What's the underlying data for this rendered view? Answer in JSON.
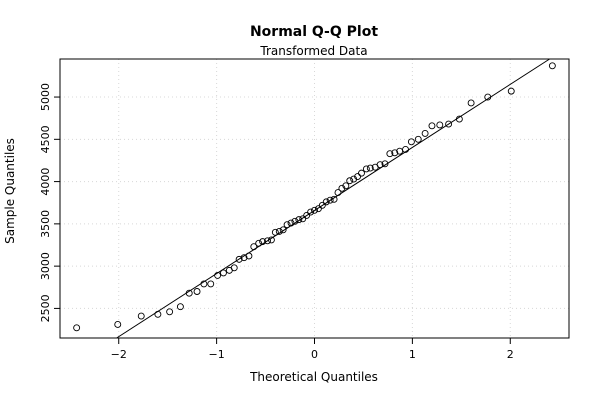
{
  "chart_data": {
    "type": "scatter",
    "title": "Normal Q-Q Plot",
    "subtitle": "Transformed Data",
    "xlabel": "Theoretical Quantiles",
    "ylabel": "Sample Quantiles",
    "xlim": [
      -2.6,
      2.6
    ],
    "ylim": [
      2150,
      5450
    ],
    "xticks": [
      -2,
      -1,
      0,
      1,
      2
    ],
    "xtick_labels": [
      "−2",
      "−1",
      "0",
      "1",
      "2"
    ],
    "yticks": [
      2500,
      3000,
      3500,
      4000,
      4500,
      5000
    ],
    "ytick_labels": [
      "2500",
      "3000",
      "3500",
      "4000",
      "4500",
      "5000"
    ],
    "grid": true,
    "reference_line": {
      "intercept": 3658,
      "slope": 746
    },
    "points": {
      "x": [
        -2.43,
        -2.01,
        -1.77,
        -1.6,
        -1.48,
        -1.37,
        -1.28,
        -1.2,
        -1.13,
        -1.06,
        -0.99,
        -0.93,
        -0.87,
        -0.82,
        -0.77,
        -0.72,
        -0.67,
        -0.62,
        -0.57,
        -0.53,
        -0.48,
        -0.44,
        -0.4,
        -0.36,
        -0.32,
        -0.28,
        -0.24,
        -0.2,
        -0.16,
        -0.12,
        -0.08,
        -0.04,
        0.0,
        0.04,
        0.08,
        0.12,
        0.16,
        0.2,
        0.24,
        0.28,
        0.32,
        0.36,
        0.4,
        0.44,
        0.48,
        0.53,
        0.57,
        0.62,
        0.67,
        0.72,
        0.77,
        0.82,
        0.87,
        0.93,
        0.99,
        1.06,
        1.13,
        1.2,
        1.28,
        1.37,
        1.48,
        1.6,
        1.77,
        2.01,
        2.43
      ],
      "y": [
        2270,
        2310,
        2410,
        2430,
        2460,
        2520,
        2680,
        2700,
        2790,
        2790,
        2890,
        2920,
        2950,
        2980,
        3080,
        3100,
        3120,
        3230,
        3270,
        3290,
        3300,
        3310,
        3400,
        3410,
        3430,
        3490,
        3510,
        3530,
        3550,
        3560,
        3600,
        3640,
        3660,
        3680,
        3720,
        3760,
        3780,
        3790,
        3870,
        3920,
        3950,
        4010,
        4030,
        4060,
        4100,
        4150,
        4160,
        4170,
        4200,
        4210,
        4330,
        4340,
        4360,
        4380,
        4470,
        4500,
        4570,
        4660,
        4670,
        4680,
        4740,
        4930,
        5000,
        5070,
        5370
      ]
    }
  }
}
